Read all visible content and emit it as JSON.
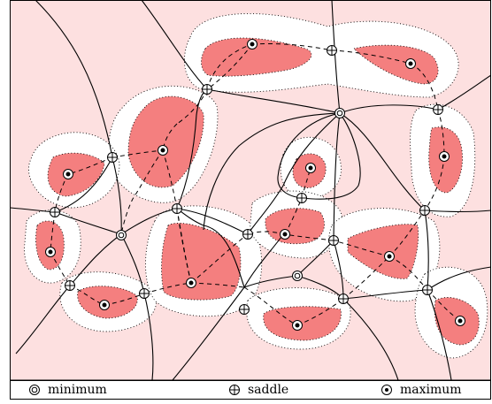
{
  "colors": {
    "background": "#fde0e0",
    "white_zone": "#ffffff",
    "region_fill": "#f47f7f",
    "line": "#000000"
  },
  "legend": {
    "minimum": "minimum",
    "saddle": "saddle",
    "maximum": "maximum"
  },
  "icons": {
    "minimum": "double-circle-icon",
    "saddle": "circle-plus-icon",
    "maximum": "dotted-circle-icon"
  }
}
